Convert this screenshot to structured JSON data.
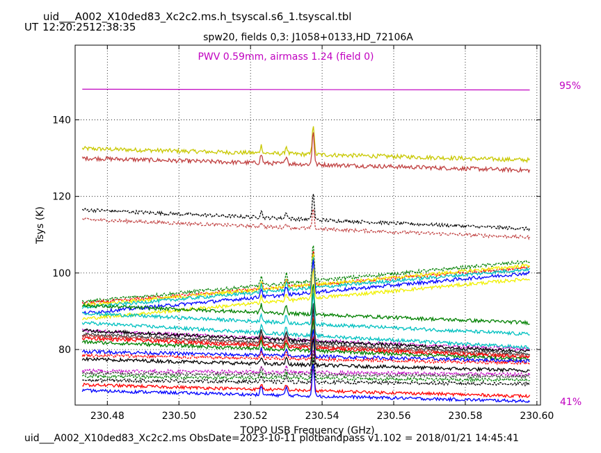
{
  "header": {
    "filename": "uid___A002_X10ded83_Xc2c2.ms.h_tsyscal.s6_1.tsyscal.tbl",
    "ut_label": "UT",
    "time_start": "12:20:25",
    "time_end": "12:38:35",
    "subtitle": "spw20,  fields 0,3: J1058+0133,HD_72106A",
    "pwv_text": "PWV 0.59mm, airmass 1.24 (field 0)"
  },
  "footer": {
    "text": "uid___A002_X10ded83_Xc2c2.ms  ObsDate=2023-10-11    plotbandpass v1.102 = 2018/01/21 14:45:41"
  },
  "right_labels": {
    "top": "95%",
    "bottom": "41%"
  },
  "colors": {
    "pwv": "#c000c0",
    "atm_line": "#c000c0",
    "grid": "#000000"
  },
  "chart_data": {
    "type": "line",
    "xlabel": "TOPO USB Frequency (GHz)",
    "ylabel": "Tsys (K)",
    "xlim": [
      230.471,
      230.601
    ],
    "ylim": [
      65.5,
      159.5
    ],
    "x_ticks": [
      "230.48",
      "230.50",
      "230.52",
      "230.54",
      "230.56",
      "230.58",
      "230.60"
    ],
    "x_tick_values": [
      230.48,
      230.5,
      230.52,
      230.54,
      230.56,
      230.58,
      230.6
    ],
    "y_ticks": [
      "80",
      "100",
      "120",
      "140"
    ],
    "y_tick_values": [
      80,
      100,
      120,
      140
    ],
    "grid": true,
    "x_range": [
      230.473,
      230.598
    ],
    "peak_center": 230.5375,
    "secondary_peaks": [
      230.523,
      230.53
    ],
    "atm_transmission_line": {
      "y_start": 148.0,
      "y_end": 147.8,
      "color": "#c000c0"
    },
    "series": [
      {
        "color": "#c8c800",
        "style": "solid",
        "start": 132.5,
        "end": 129.5,
        "noise": 0.55,
        "peak": 8
      },
      {
        "color": "#c04040",
        "style": "solid",
        "start": 130.0,
        "end": 126.8,
        "noise": 0.55,
        "peak": 9
      },
      {
        "color": "#000000",
        "style": "dashed",
        "start": 116.5,
        "end": 111.5,
        "noise": 0.45,
        "peak": 7
      },
      {
        "color": "#c04040",
        "style": "dashed",
        "start": 114.0,
        "end": 109.3,
        "noise": 0.45,
        "peak": 5
      },
      {
        "color": "#008000",
        "style": "dashed",
        "start": 92.5,
        "end": 103.0,
        "noise": 0.45,
        "peak": 10
      },
      {
        "color": "#ff0000",
        "style": "dashed",
        "start": 92.0,
        "end": 101.5,
        "noise": 0.45,
        "peak": 9
      },
      {
        "color": "#f0f000",
        "style": "solid",
        "start": 91.5,
        "end": 102.0,
        "noise": 0.45,
        "peak": 8
      },
      {
        "color": "#00c0c0",
        "style": "solid",
        "start": 91.0,
        "end": 101.0,
        "noise": 0.45,
        "peak": 8
      },
      {
        "color": "#0000ff",
        "style": "solid",
        "start": 89.5,
        "end": 100.0,
        "noise": 0.45,
        "peak": 9
      },
      {
        "color": "#f0f000",
        "style": "solid",
        "start": 88.0,
        "end": 98.5,
        "noise": 0.45,
        "peak": 8
      },
      {
        "color": "#008000",
        "style": "solid",
        "start": 91.5,
        "end": 87.0,
        "noise": 0.45,
        "peak": 8
      },
      {
        "color": "#00c0c0",
        "style": "solid",
        "start": 89.5,
        "end": 84.0,
        "noise": 0.45,
        "peak": 8
      },
      {
        "color": "#00c0c0",
        "style": "solid",
        "start": 87.0,
        "end": 80.5,
        "noise": 0.45,
        "peak": 8
      },
      {
        "color": "#c000c0",
        "style": "dashed",
        "start": 85.0,
        "end": 80.0,
        "noise": 0.45,
        "peak": 7
      },
      {
        "color": "#000000",
        "style": "solid",
        "start": 85.0,
        "end": 79.5,
        "noise": 0.45,
        "peak": 9
      },
      {
        "color": "#404040",
        "style": "solid",
        "start": 84.0,
        "end": 78.8,
        "noise": 0.45,
        "peak": 11
      },
      {
        "color": "#c04040",
        "style": "solid",
        "start": 83.5,
        "end": 78.3,
        "noise": 0.45,
        "peak": 8
      },
      {
        "color": "#ff0000",
        "style": "solid",
        "start": 83.0,
        "end": 78.0,
        "noise": 0.45,
        "peak": 8
      },
      {
        "color": "#008000",
        "style": "solid",
        "start": 82.0,
        "end": 77.5,
        "noise": 0.45,
        "peak": 8
      },
      {
        "color": "#0000ff",
        "style": "solid",
        "start": 79.5,
        "end": 77.0,
        "noise": 0.45,
        "peak": 7
      },
      {
        "color": "#ff0000",
        "style": "dashed",
        "start": 78.5,
        "end": 76.5,
        "noise": 0.45,
        "peak": 6
      },
      {
        "color": "#000000",
        "style": "solid",
        "start": 77.5,
        "end": 74.5,
        "noise": 0.45,
        "peak": 7
      },
      {
        "color": "#c000c0",
        "style": "dashed",
        "start": 74.5,
        "end": 73.5,
        "noise": 0.45,
        "peak": 6
      },
      {
        "color": "#404040",
        "style": "dashed",
        "start": 73.8,
        "end": 73.0,
        "noise": 0.45,
        "peak": 6
      },
      {
        "color": "#008000",
        "style": "dashed",
        "start": 73.0,
        "end": 72.0,
        "noise": 0.45,
        "peak": 6
      },
      {
        "color": "#000000",
        "style": "dashed",
        "start": 72.0,
        "end": 71.0,
        "noise": 0.45,
        "peak": 6
      },
      {
        "color": "#ff0000",
        "style": "solid",
        "start": 70.8,
        "end": 67.8,
        "noise": 0.4,
        "peak": 6
      },
      {
        "color": "#0000ff",
        "style": "solid",
        "start": 69.3,
        "end": 66.5,
        "noise": 0.4,
        "peak": 9
      }
    ]
  }
}
